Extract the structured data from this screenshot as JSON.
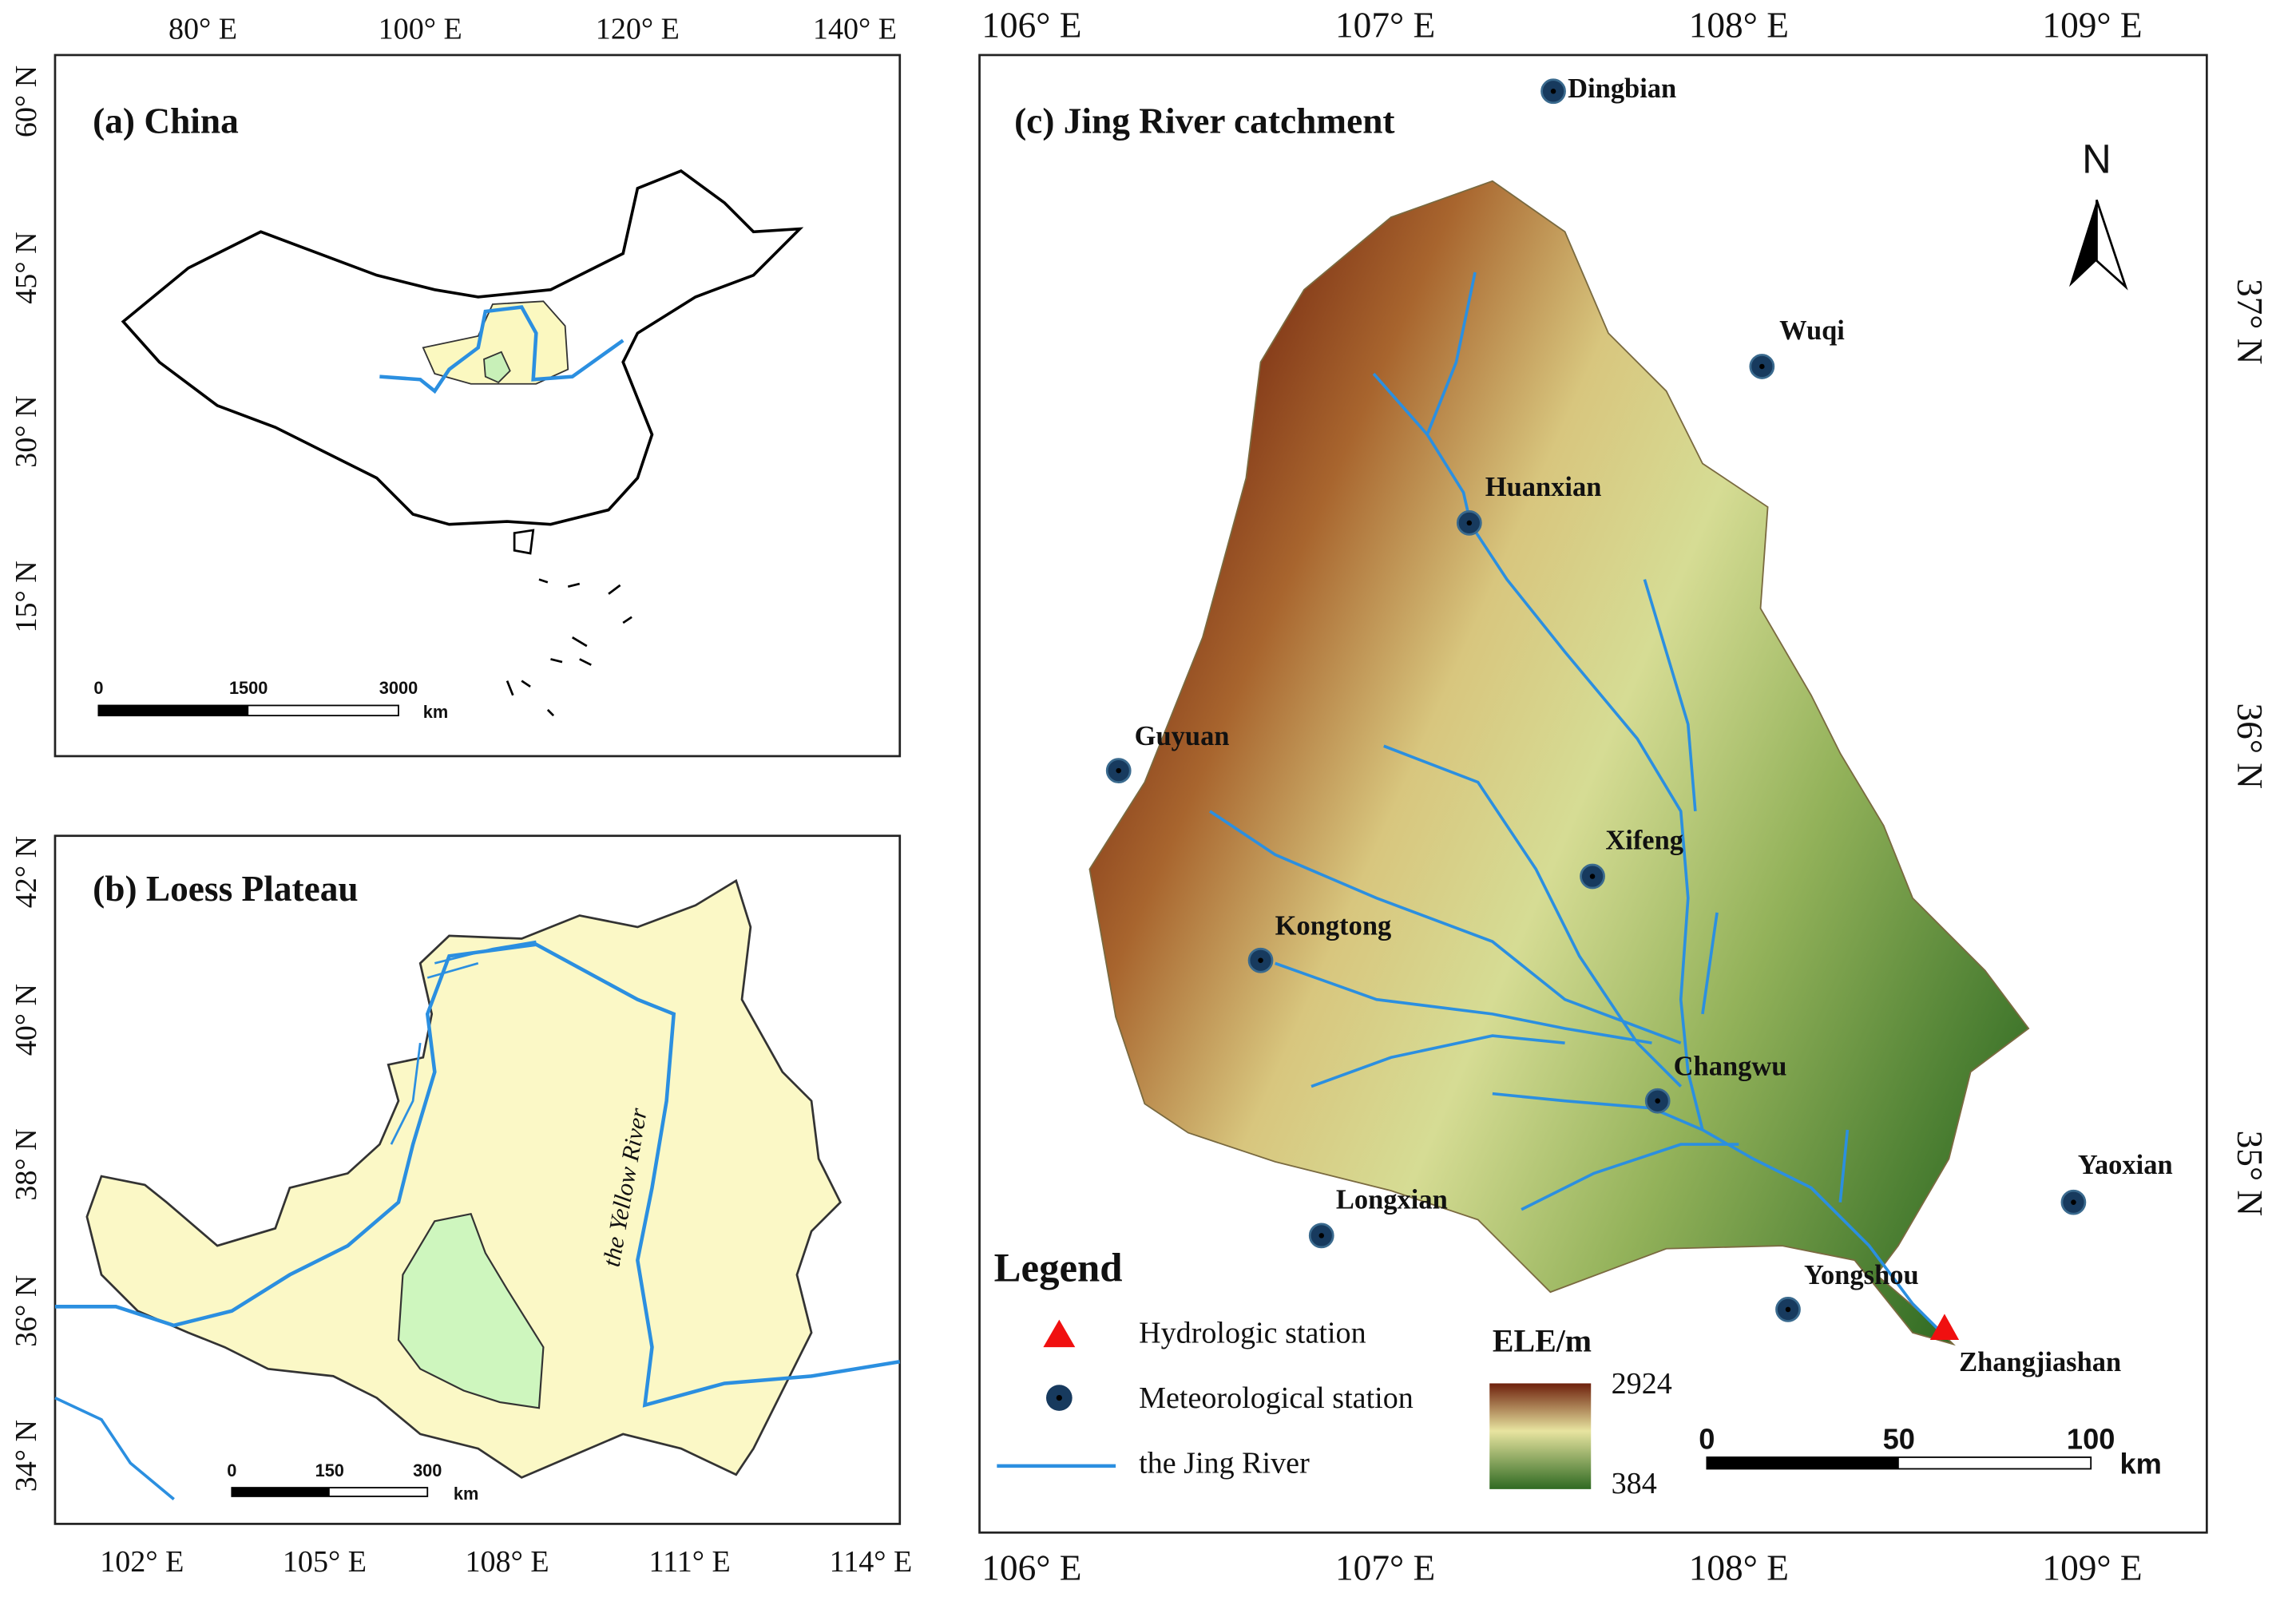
{
  "panels": [
    {
      "title": "(a) China",
      "top_ticks": [
        "80° E",
        "100° E",
        "120° E",
        "140° E"
      ],
      "left_ticks": [
        "60° N",
        "45° N",
        "30° N",
        "15° N"
      ],
      "scale_bar": {
        "labels": [
          "0",
          "1500",
          "3000"
        ],
        "unit": "km"
      }
    },
    {
      "title": "(b) Loess Plateau",
      "left_ticks": [
        "42° N",
        "40° N",
        "38° N",
        "36° N",
        "34° N"
      ],
      "bottom_ticks": [
        "102° E",
        "105° E",
        "108° E",
        "111° E",
        "114° E"
      ],
      "river_label": "the Yellow River",
      "scale_bar": {
        "labels": [
          "0",
          "150",
          "300"
        ],
        "unit": "km"
      }
    },
    {
      "title": "(c) Jing River catchment",
      "top_ticks": [
        "106° E",
        "107° E",
        "108° E",
        "109° E"
      ],
      "bottom_ticks": [
        "106° E",
        "107° E",
        "108° E",
        "109° E"
      ],
      "right_ticks": [
        "37° N",
        "36° N",
        "35° N"
      ],
      "north": "N",
      "stations": [
        "Dingbian",
        "Wuqi",
        "Huanxian",
        "Guyuan",
        "Xifeng",
        "Kongtong",
        "Changwu",
        "Yaoxian",
        "Longxian",
        "Yongshou",
        "Zhangjiashan"
      ],
      "legend": {
        "title": "Legend",
        "items": [
          "Hydrologic station",
          "Meteorological station",
          "the Jing River"
        ]
      },
      "colorbar": {
        "title": "ELE/m",
        "max": "2924",
        "min": "384"
      },
      "scale_bar": {
        "labels": [
          "0",
          "50",
          "100"
        ],
        "unit": "km"
      }
    }
  ]
}
